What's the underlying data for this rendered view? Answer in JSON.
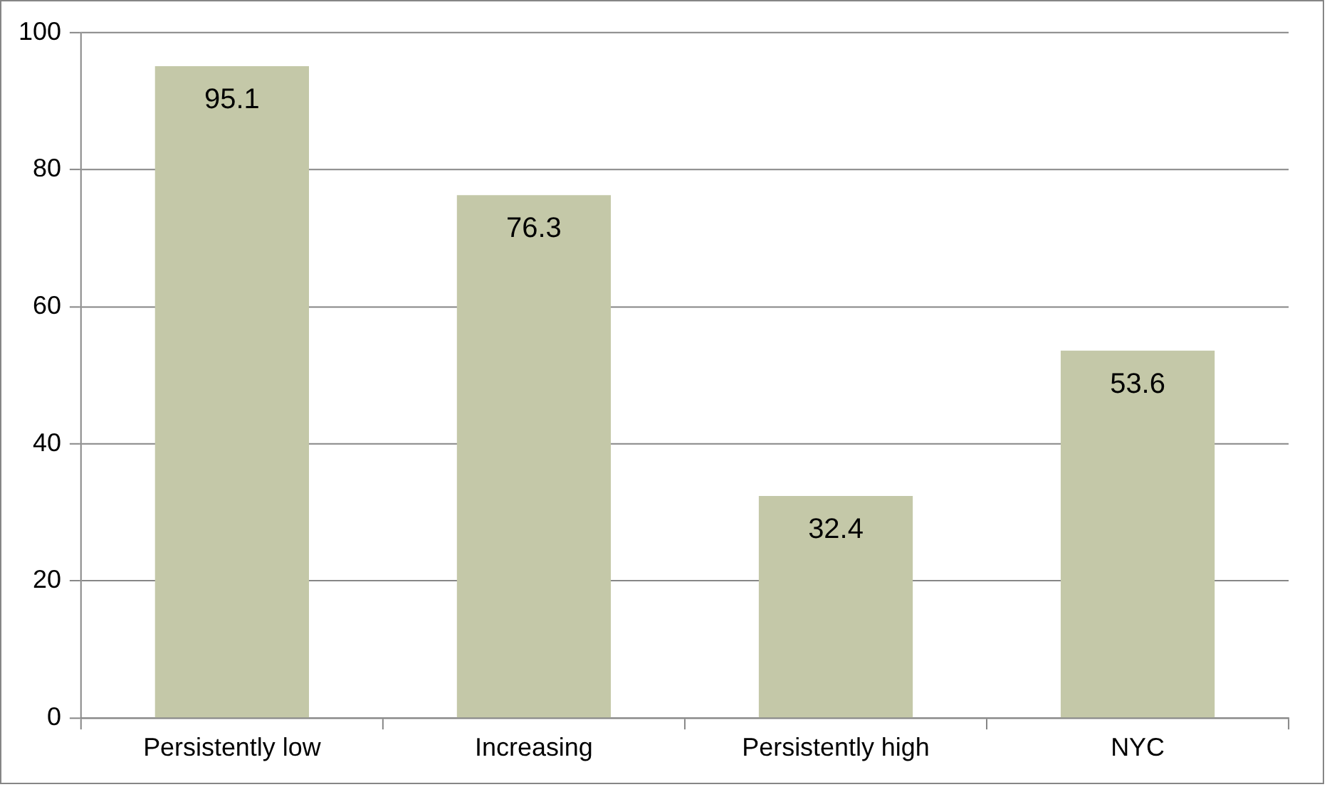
{
  "chart_data": {
    "type": "bar",
    "categories": [
      "Persistently low",
      "Increasing",
      "Persistently high",
      "NYC"
    ],
    "values": [
      95.1,
      76.3,
      32.4,
      53.6
    ],
    "color": "#c4c8a8",
    "ylim": [
      0,
      100
    ],
    "yticks": [
      0,
      20,
      40,
      60,
      80,
      100
    ],
    "grid": "y",
    "data_labels": true,
    "legend": false
  }
}
